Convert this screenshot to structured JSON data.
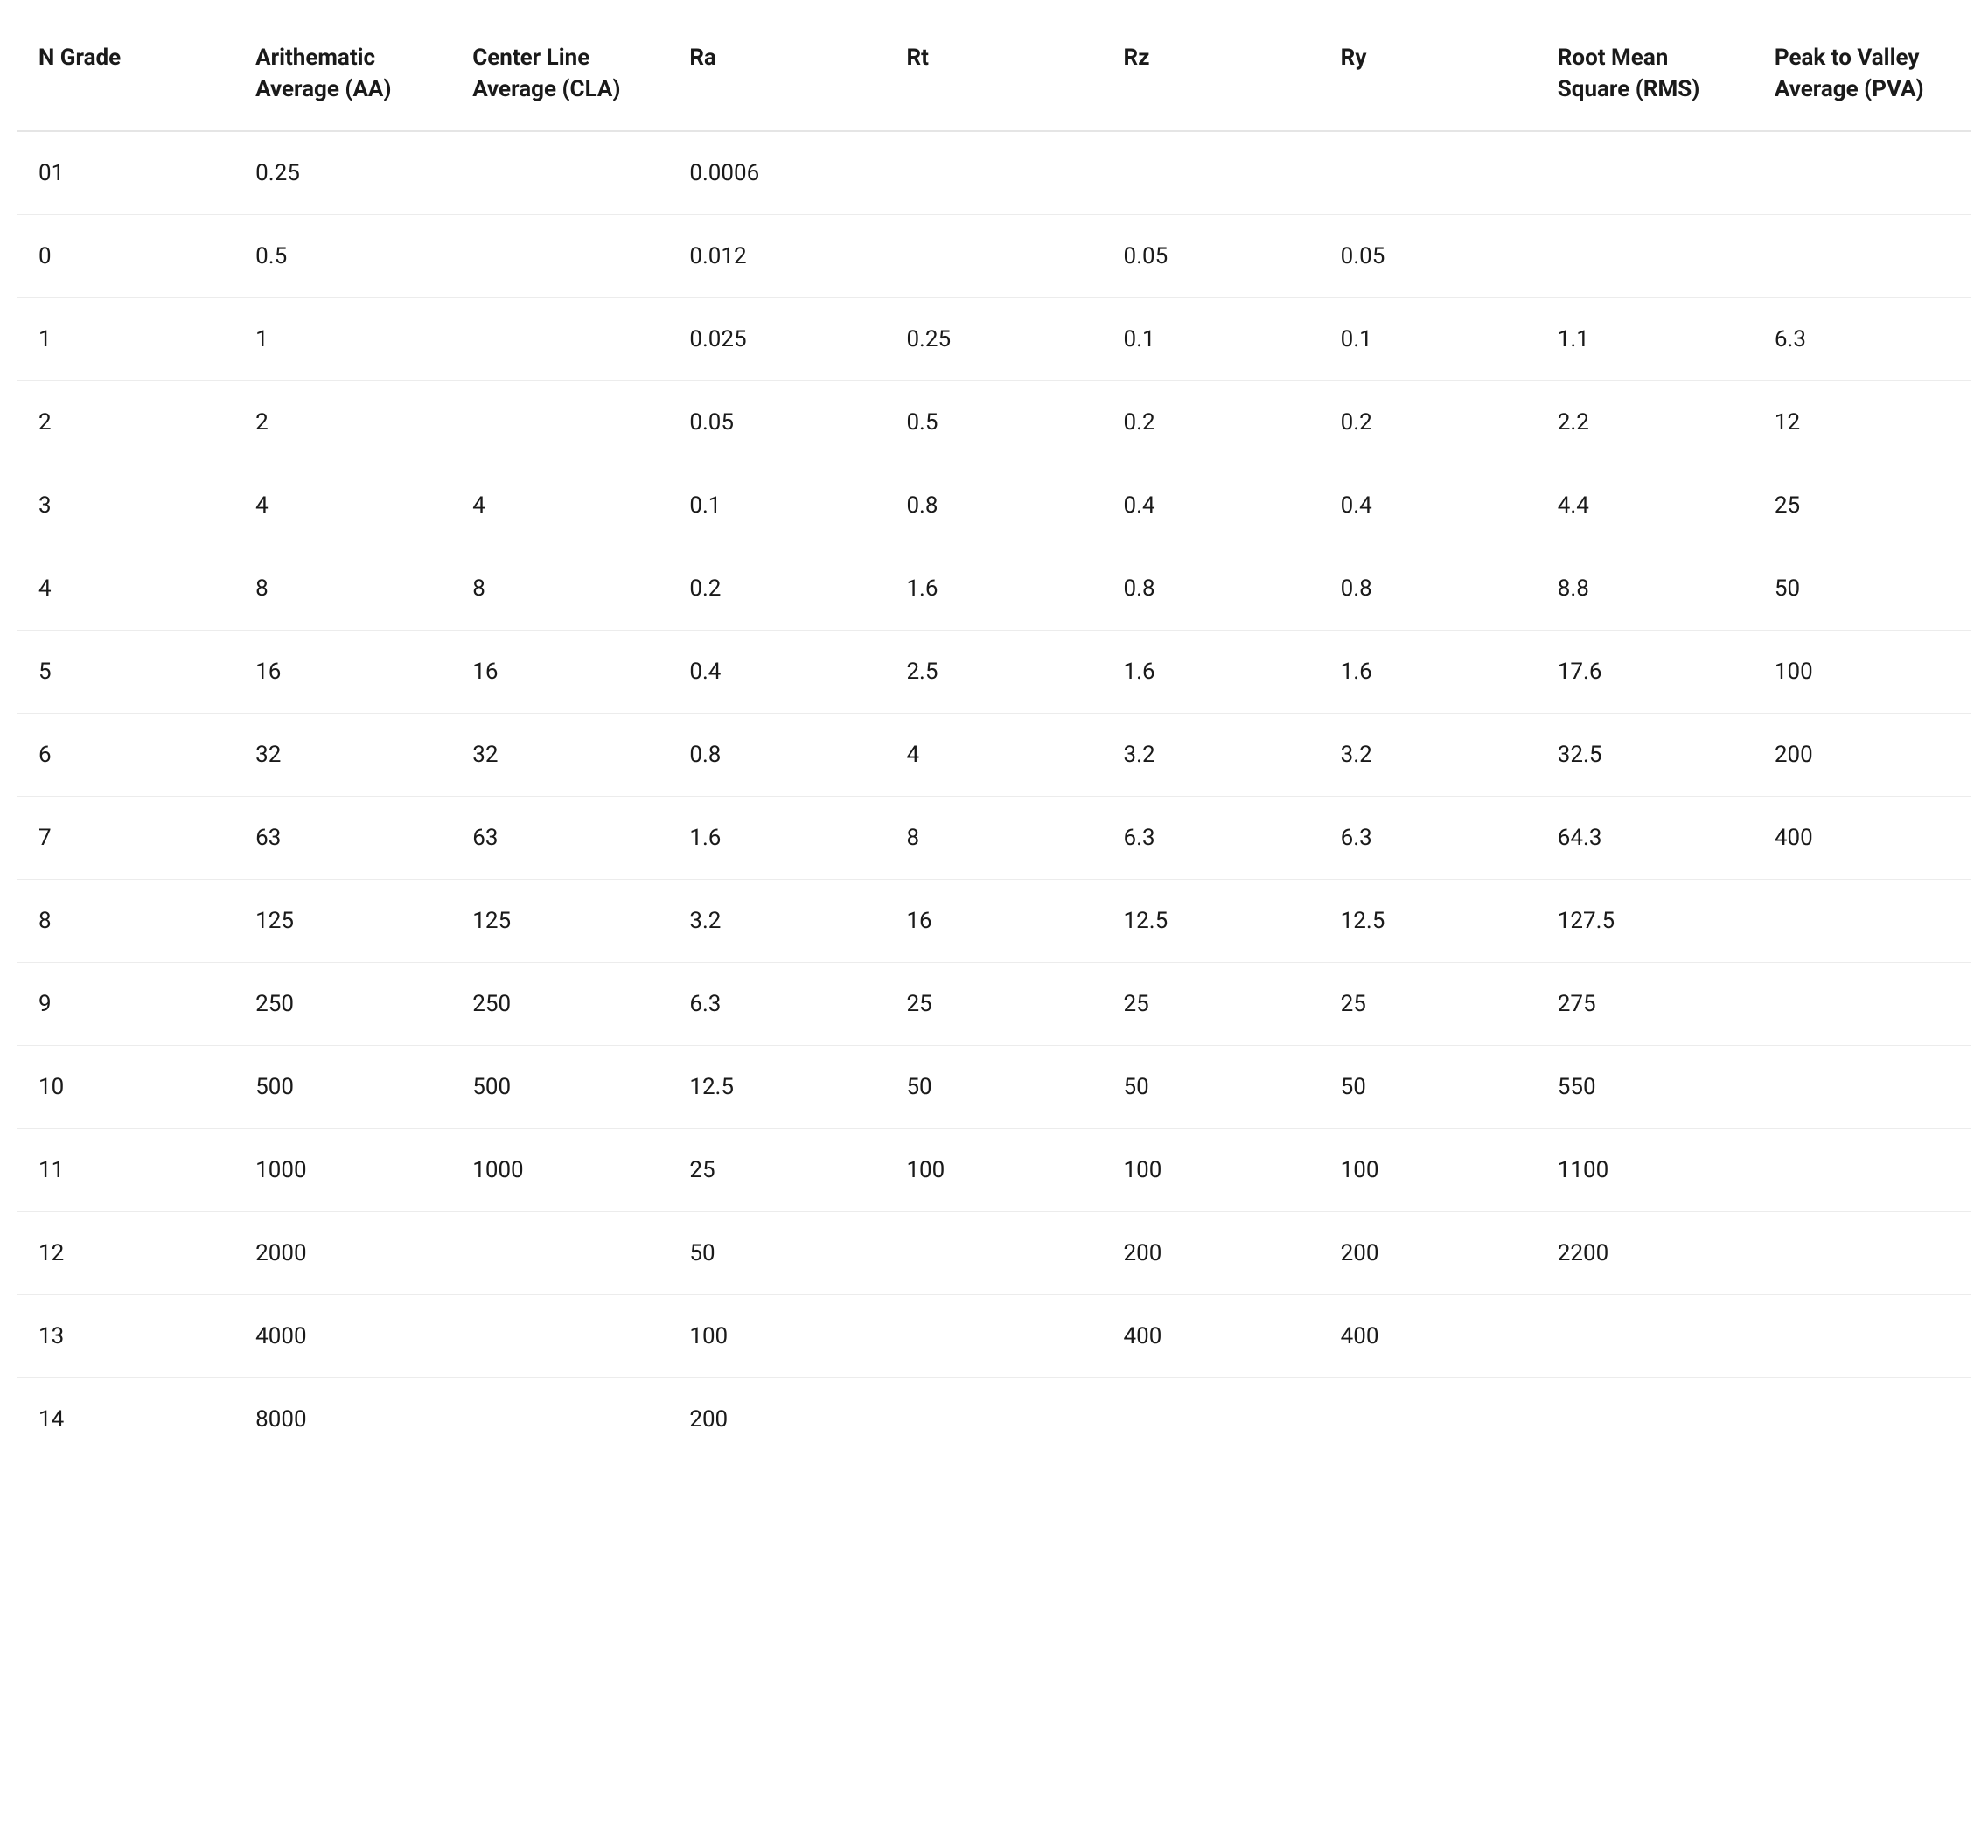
{
  "table": {
    "type": "table",
    "background_color": "#ffffff",
    "header_font_weight": 700,
    "body_font_weight": 400,
    "font_size": 26,
    "text_color": "#1a1a1a",
    "border_color": "#ececec",
    "header_border_color": "#e5e5e5",
    "columns": [
      "N Grade",
      "Arithematic Average (AA)",
      "Center Line Average (CLA)",
      "Ra",
      "Rt",
      "Rz",
      "Ry",
      "Root Mean Square (RMS)",
      "Peak to Valley Average (PVA)"
    ],
    "rows": [
      [
        "01",
        "0.25",
        "",
        "0.0006",
        "",
        "",
        "",
        "",
        ""
      ],
      [
        "0",
        "0.5",
        "",
        "0.012",
        "",
        "0.05",
        "0.05",
        "",
        ""
      ],
      [
        "1",
        "1",
        "",
        "0.025",
        "0.25",
        "0.1",
        "0.1",
        "1.1",
        "6.3"
      ],
      [
        "2",
        "2",
        "",
        "0.05",
        "0.5",
        "0.2",
        "0.2",
        "2.2",
        "12"
      ],
      [
        "3",
        "4",
        "4",
        "0.1",
        "0.8",
        "0.4",
        "0.4",
        "4.4",
        "25"
      ],
      [
        "4",
        "8",
        "8",
        "0.2",
        "1.6",
        "0.8",
        "0.8",
        "8.8",
        "50"
      ],
      [
        "5",
        "16",
        "16",
        "0.4",
        "2.5",
        "1.6",
        "1.6",
        "17.6",
        "100"
      ],
      [
        "6",
        "32",
        "32",
        "0.8",
        "4",
        "3.2",
        "3.2",
        "32.5",
        "200"
      ],
      [
        "7",
        "63",
        "63",
        "1.6",
        "8",
        "6.3",
        "6.3",
        "64.3",
        "400"
      ],
      [
        "8",
        "125",
        "125",
        "3.2",
        "16",
        "12.5",
        "12.5",
        "127.5",
        ""
      ],
      [
        "9",
        "250",
        "250",
        "6.3",
        "25",
        "25",
        "25",
        "275",
        ""
      ],
      [
        "10",
        "500",
        "500",
        "12.5",
        "50",
        "50",
        "50",
        "550",
        ""
      ],
      [
        "11",
        "1000",
        "1000",
        "25",
        "100",
        "100",
        "100",
        "1100",
        ""
      ],
      [
        "12",
        "2000",
        "",
        "50",
        "",
        "200",
        "200",
        "2200",
        ""
      ],
      [
        "13",
        "4000",
        "",
        "100",
        "",
        "400",
        "400",
        "",
        ""
      ],
      [
        "14",
        "8000",
        "",
        "200",
        "",
        "",
        "",
        "",
        ""
      ]
    ]
  }
}
